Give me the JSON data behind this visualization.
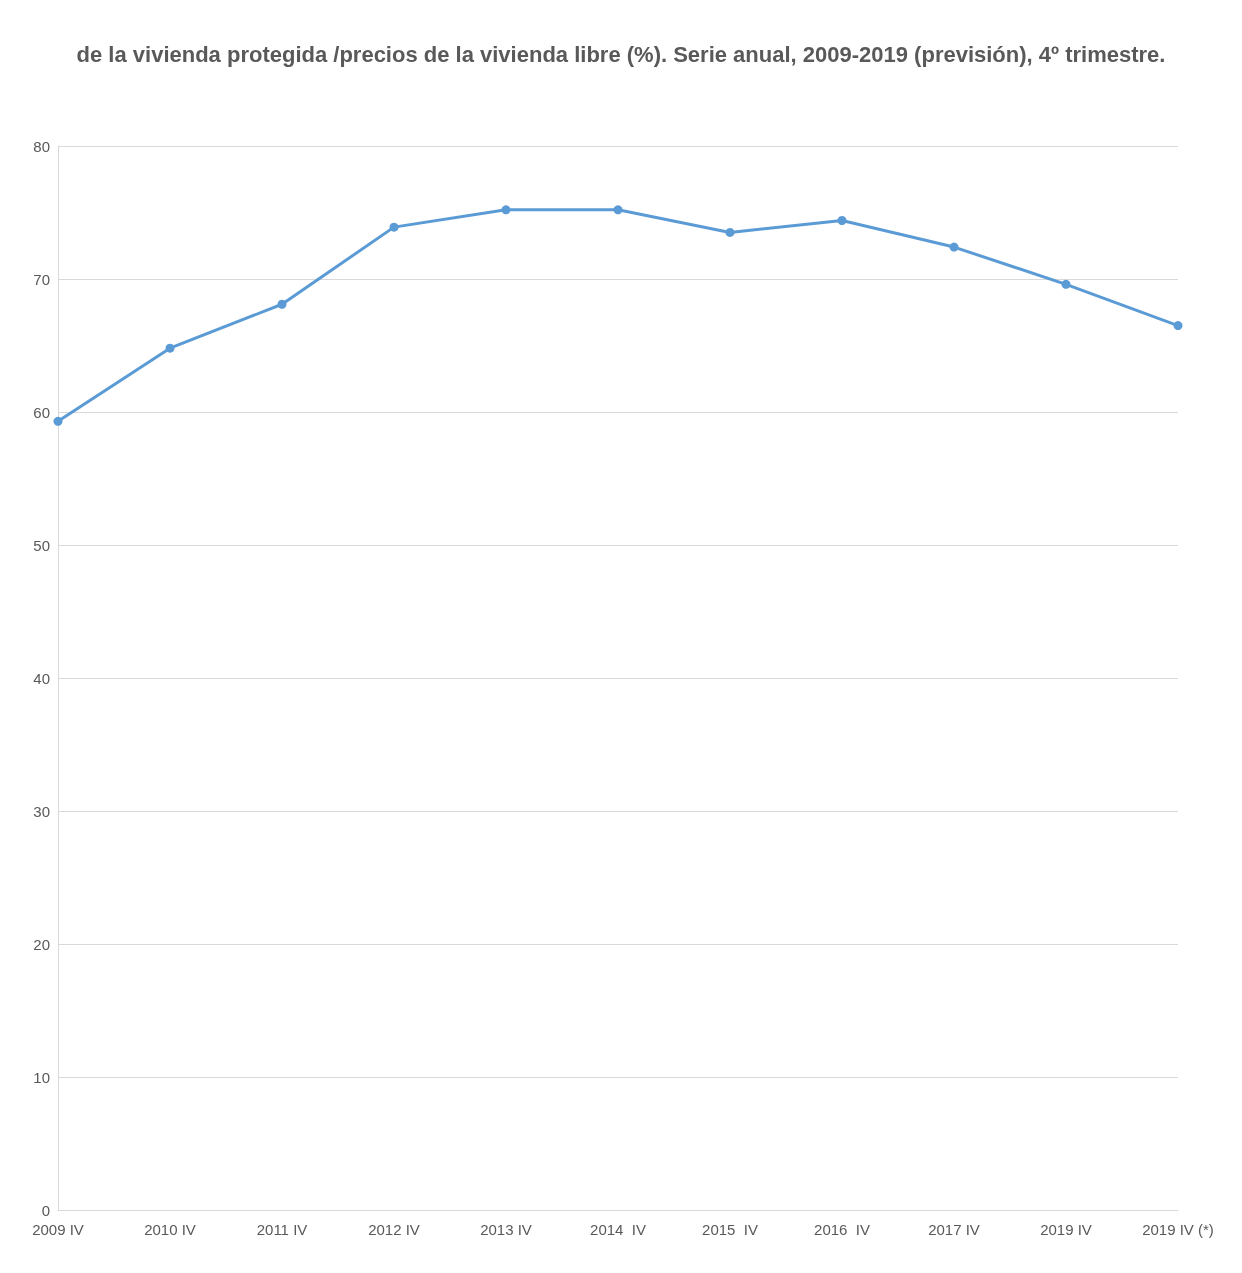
{
  "chart_data": {
    "type": "line",
    "title": "de la vivienda protegida /precios de la vivienda libre (%). Serie anual, 2009-2019 (previsión), 4º trimestre.",
    "categories": [
      "2009 IV",
      "2010 IV",
      "2011 IV",
      "2012 IV",
      "2013 IV",
      "2014  IV",
      "2015  IV",
      "2016  IV",
      "2017 IV",
      "2019 IV",
      "2019 IV (*)"
    ],
    "series": [
      {
        "color": "#5b9bd5",
        "values": [
          59.3,
          64.8,
          68.1,
          73.9,
          75.2,
          75.2,
          73.5,
          74.4,
          72.4,
          69.6,
          66.5
        ]
      }
    ],
    "ylim": [
      0,
      80
    ],
    "yticks": [
      0,
      10,
      20,
      30,
      40,
      50,
      60,
      70,
      80
    ],
    "grid": "y",
    "marker": "circle",
    "line_style": "solid"
  }
}
